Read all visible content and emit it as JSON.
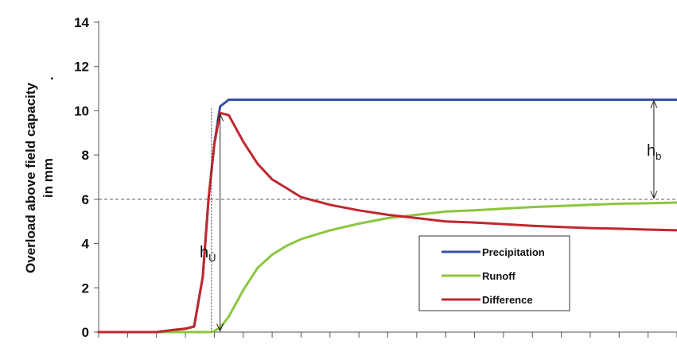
{
  "chart_data": {
    "type": "line",
    "title": "",
    "xlabel": "",
    "ylabel": "Overload above field capacity in mm",
    "ylabel_lines": [
      "Overload above field capacity",
      "in mm"
    ],
    "ylim": [
      0,
      14
    ],
    "yticks": [
      0,
      2,
      4,
      6,
      8,
      10,
      12,
      14
    ],
    "xlim": [
      0,
      20
    ],
    "x_tick_count": 20,
    "grid": false,
    "legend_position": "center-right",
    "reference_line": {
      "y": 6,
      "style": "dashed"
    },
    "annotations": [
      {
        "text": "h",
        "sub": "Ü",
        "meaning": "overload height (Difference peak to zero)"
      },
      {
        "text": "h",
        "sub": "b",
        "meaning": "difference between Precipitation and reference level"
      }
    ],
    "series": [
      {
        "name": "Precipitation",
        "color": "#3a50a8",
        "x": [
          0,
          1.0,
          2.0,
          2.6,
          3.0,
          3.3,
          3.6,
          3.8,
          4.0,
          4.2,
          4.5,
          5.0,
          6.0,
          8.0,
          10.0,
          12.0,
          14.0,
          16.0,
          18.0,
          20.0
        ],
        "y": [
          0,
          0,
          0,
          0.1,
          0.15,
          0.25,
          2.5,
          6.0,
          8.5,
          10.2,
          10.5,
          10.5,
          10.5,
          10.5,
          10.5,
          10.5,
          10.5,
          10.5,
          10.5,
          10.5
        ]
      },
      {
        "name": "Runoff",
        "color": "#8cc63e",
        "x": [
          0,
          1.0,
          2.0,
          3.0,
          3.6,
          3.9,
          4.0,
          4.2,
          4.5,
          5.0,
          5.5,
          6.0,
          6.5,
          7.0,
          8.0,
          9.0,
          10.0,
          11.0,
          12.0,
          13.0,
          14.0,
          15.0,
          16.0,
          17.0,
          18.0,
          19.0,
          20.0
        ],
        "y": [
          0,
          0,
          0,
          0,
          0,
          0,
          0.05,
          0.2,
          0.7,
          1.9,
          2.9,
          3.5,
          3.9,
          4.2,
          4.6,
          4.9,
          5.15,
          5.3,
          5.45,
          5.5,
          5.58,
          5.65,
          5.7,
          5.75,
          5.8,
          5.82,
          5.85
        ]
      },
      {
        "name": "Difference",
        "color": "#c0282d",
        "x": [
          0,
          1.0,
          2.0,
          2.6,
          3.0,
          3.3,
          3.6,
          3.8,
          4.0,
          4.2,
          4.5,
          5.0,
          5.5,
          6.0,
          6.5,
          7.0,
          8.0,
          9.0,
          10.0,
          11.0,
          12.0,
          13.0,
          14.0,
          15.0,
          16.0,
          17.0,
          18.0,
          19.0,
          20.0
        ],
        "y": [
          0,
          0,
          0,
          0.1,
          0.15,
          0.25,
          2.5,
          6.0,
          8.5,
          9.9,
          9.8,
          8.6,
          7.6,
          6.9,
          6.5,
          6.1,
          5.75,
          5.5,
          5.3,
          5.15,
          5.0,
          4.95,
          4.88,
          4.8,
          4.75,
          4.7,
          4.67,
          4.63,
          4.6
        ]
      }
    ]
  },
  "legend": {
    "items": [
      {
        "label": "Precipitation",
        "color": "#3a50a8"
      },
      {
        "label": "Runoff",
        "color": "#8cc63e"
      },
      {
        "label": "Difference",
        "color": "#c0282d"
      }
    ]
  },
  "annotations": {
    "h_u_main": "h",
    "h_u_sub": "Ü",
    "h_b_main": "h",
    "h_b_sub": "b"
  },
  "stray_mark": "."
}
